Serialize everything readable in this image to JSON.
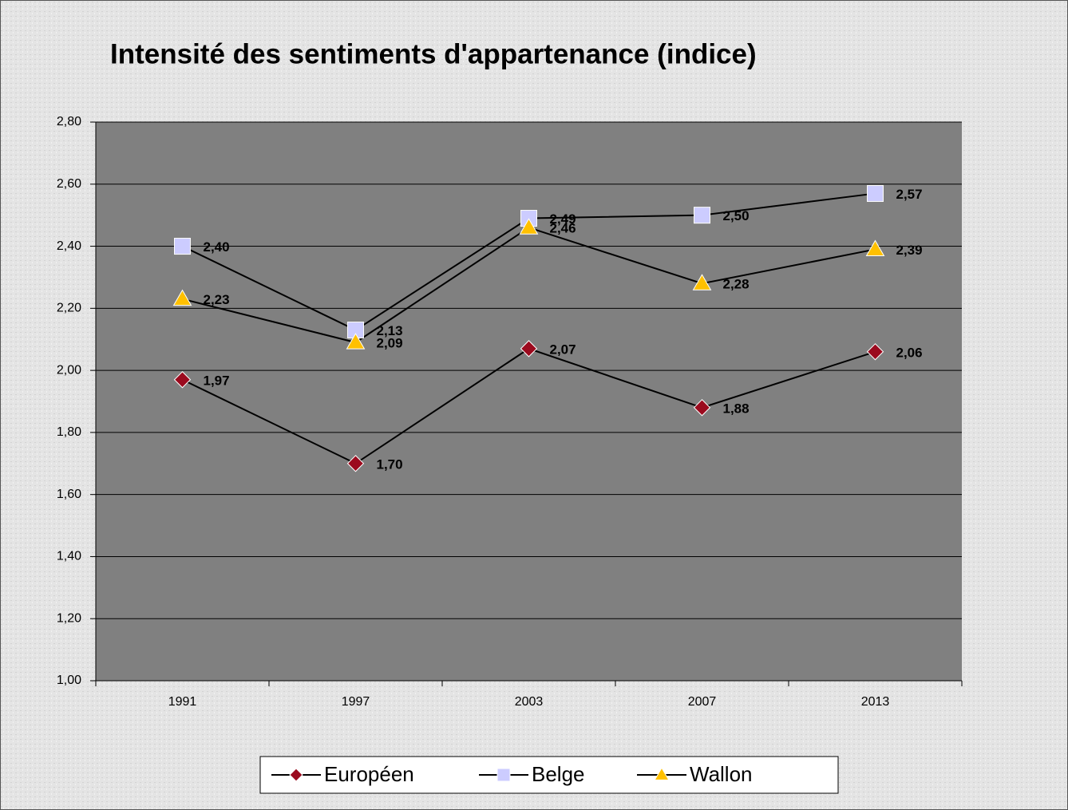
{
  "chart_data": {
    "type": "line",
    "title": "Intensité des sentiments d'appartenance (indice)",
    "categories": [
      "1991",
      "1997",
      "2003",
      "2007",
      "2013"
    ],
    "series": [
      {
        "name": "Européen",
        "color": "#9b0a1e",
        "marker": "diamond",
        "values": [
          1.97,
          1.7,
          2.07,
          1.88,
          2.06
        ],
        "value_labels": [
          "1,97",
          "1,70",
          "2,07",
          "1,88",
          "2,06"
        ]
      },
      {
        "name": "Belge",
        "color": "#ccccff",
        "marker": "square",
        "values": [
          2.4,
          2.13,
          2.49,
          2.5,
          2.57
        ],
        "value_labels": [
          "2,40",
          "2,13",
          "2,49",
          "2,50",
          "2,57"
        ]
      },
      {
        "name": "Wallon",
        "color": "#ffc000",
        "marker": "triangle",
        "values": [
          2.23,
          2.09,
          2.46,
          2.28,
          2.39
        ],
        "value_labels": [
          "2,23",
          "2,09",
          "2,46",
          "2,28",
          "2,39"
        ]
      }
    ],
    "line_color": "#000000",
    "ylim": [
      1.0,
      2.8
    ],
    "yticks": [
      {
        "value": 1.0,
        "label": "1,00"
      },
      {
        "value": 1.2,
        "label": "1,20"
      },
      {
        "value": 1.4,
        "label": "1,40"
      },
      {
        "value": 1.6,
        "label": "1,60"
      },
      {
        "value": 1.8,
        "label": "1,80"
      },
      {
        "value": 2.0,
        "label": "2,00"
      },
      {
        "value": 2.2,
        "label": "2,20"
      },
      {
        "value": 2.4,
        "label": "2,40"
      },
      {
        "value": 2.6,
        "label": "2,60"
      },
      {
        "value": 2.8,
        "label": "2,80"
      }
    ],
    "grid": true,
    "legend": "bottom"
  }
}
